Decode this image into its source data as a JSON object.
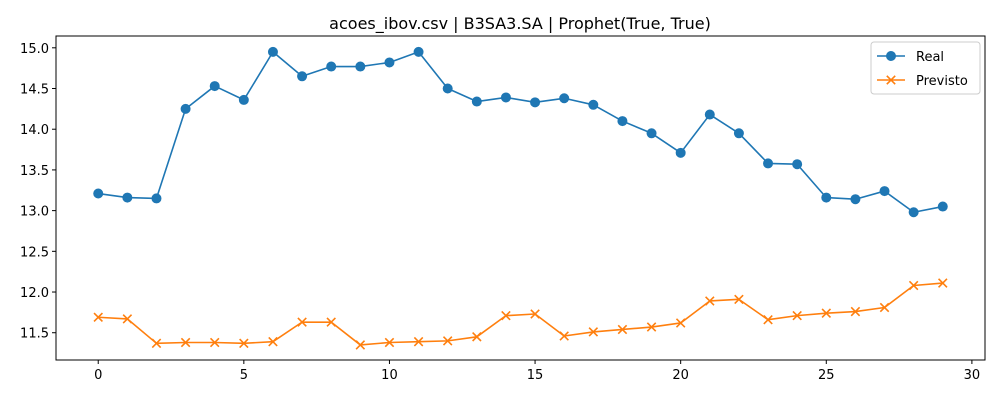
{
  "chart_data": {
    "type": "line",
    "title": "acoes_ibov.csv | B3SA3.SA | Prophet(True, True)",
    "xlabel": "",
    "ylabel": "",
    "xlim": [
      -1.45,
      30.45
    ],
    "ylim": [
      11.165,
      15.145
    ],
    "xticks": [
      0,
      5,
      10,
      15,
      20,
      25,
      30
    ],
    "yticks": [
      11.5,
      12.0,
      12.5,
      13.0,
      13.5,
      14.0,
      14.5,
      15.0
    ],
    "ytick_labels": [
      "11.5",
      "12.0",
      "12.5",
      "13.0",
      "13.5",
      "14.0",
      "14.5",
      "15.0"
    ],
    "grid": false,
    "legend_position": "top-right",
    "x": [
      0,
      1,
      2,
      3,
      4,
      5,
      6,
      7,
      8,
      9,
      10,
      11,
      12,
      13,
      14,
      15,
      16,
      17,
      18,
      19,
      20,
      21,
      22,
      23,
      24,
      25,
      26,
      27,
      28,
      29
    ],
    "series": [
      {
        "name": "Real",
        "color": "#1f77b4",
        "marker": "circle",
        "values": [
          13.21,
          13.16,
          13.15,
          14.25,
          14.53,
          14.36,
          14.95,
          14.65,
          14.77,
          14.77,
          14.82,
          14.95,
          14.5,
          14.34,
          14.39,
          14.33,
          14.38,
          14.3,
          14.1,
          13.95,
          13.71,
          14.18,
          13.95,
          13.58,
          13.57,
          13.16,
          13.14,
          13.24,
          12.98,
          13.05
        ]
      },
      {
        "name": "Previsto",
        "color": "#ff7f0e",
        "marker": "x",
        "values": [
          11.69,
          11.67,
          11.37,
          11.38,
          11.38,
          11.37,
          11.39,
          11.63,
          11.63,
          11.35,
          11.38,
          11.39,
          11.4,
          11.45,
          11.71,
          11.73,
          11.46,
          11.51,
          11.54,
          11.57,
          11.62,
          11.89,
          11.91,
          11.66,
          11.71,
          11.74,
          11.76,
          11.81,
          12.08,
          12.11
        ]
      }
    ]
  }
}
